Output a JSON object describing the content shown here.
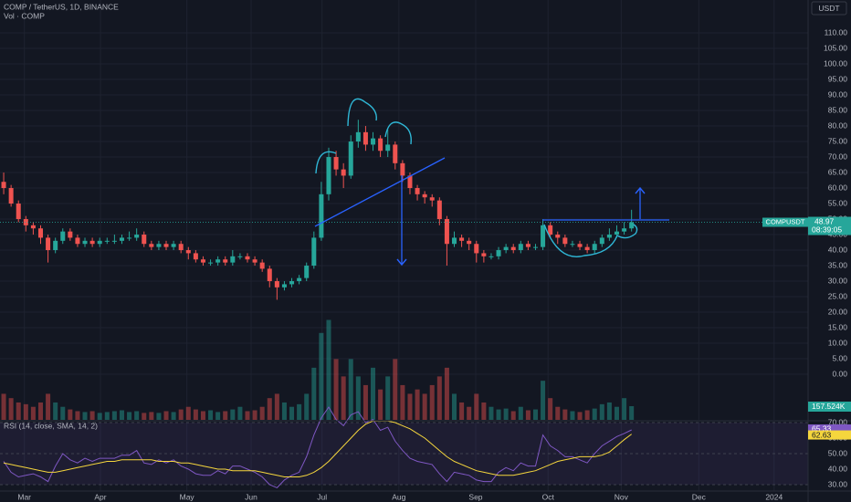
{
  "chart_data": {
    "type": "candlestick",
    "title": "COMP / TetherUS, 1D, BINANCE",
    "currency": "USDT",
    "symbol": "COMPUSDT",
    "countdown": "08:39:05",
    "colors": {
      "up": "#26a69a",
      "down": "#ef5350"
    },
    "grid": true,
    "xlim": [
      -0.5,
      108.9
    ],
    "xticks": [
      {
        "value": 2.8,
        "label": "Mar"
      },
      {
        "value": 13.1,
        "label": "Apr"
      },
      {
        "value": 24.8,
        "label": "May"
      },
      {
        "value": 33.5,
        "label": "Jun"
      },
      {
        "value": 43.1,
        "label": "Jul"
      },
      {
        "value": 53.5,
        "label": "Aug"
      },
      {
        "value": 63.9,
        "label": "Sep"
      },
      {
        "value": 73.7,
        "label": "Oct"
      },
      {
        "value": 83.6,
        "label": "Nov"
      },
      {
        "value": 94.1,
        "label": "Dec"
      },
      {
        "value": 104.3,
        "label": "2024"
      }
    ],
    "ylim": [
      -14.7,
      120.6
    ],
    "yticks": [
      {
        "value": 0,
        "label": "0.00"
      },
      {
        "value": 5,
        "label": "5.00"
      },
      {
        "value": 10,
        "label": "10.00"
      },
      {
        "value": 15,
        "label": "15.00"
      },
      {
        "value": 20,
        "label": "20.00"
      },
      {
        "value": 25,
        "label": "25.00"
      },
      {
        "value": 30,
        "label": "30.00"
      },
      {
        "value": 35,
        "label": "35.00"
      },
      {
        "value": 40,
        "label": "40.00"
      },
      {
        "value": 45,
        "label": "45.00"
      },
      {
        "value": 50,
        "label": "50.00"
      },
      {
        "value": 55,
        "label": "55.00"
      },
      {
        "value": 60,
        "label": "60.00"
      },
      {
        "value": 65,
        "label": "65.00"
      },
      {
        "value": 70,
        "label": "70.00"
      },
      {
        "value": 75,
        "label": "75.00"
      },
      {
        "value": 80,
        "label": "80.00"
      },
      {
        "value": 85,
        "label": "85.00"
      },
      {
        "value": 90,
        "label": "90.00"
      },
      {
        "value": 95,
        "label": "95.00"
      },
      {
        "value": 100,
        "label": "100.00"
      },
      {
        "value": 105,
        "label": "105.00"
      },
      {
        "value": 110,
        "label": "110.00"
      }
    ],
    "open": [
      62,
      60,
      55,
      50,
      48,
      47,
      44,
      40,
      43,
      46,
      44,
      42,
      43,
      42,
      43,
      43,
      43,
      44,
      44,
      45,
      42,
      41,
      42,
      41,
      42,
      40,
      39,
      37,
      36,
      36,
      37,
      36,
      38,
      38,
      37,
      36,
      34,
      30,
      28,
      29,
      30,
      31,
      35,
      44,
      58,
      70,
      66,
      64,
      75,
      78,
      74,
      76,
      72,
      74,
      68,
      64,
      60,
      58,
      57,
      56,
      50,
      42,
      44,
      43,
      42,
      39,
      38,
      38,
      40,
      41,
      40,
      42,
      41,
      41,
      48,
      45,
      44,
      42,
      42,
      41,
      40,
      42,
      44,
      45,
      46,
      47
    ],
    "high": [
      65,
      61,
      56,
      51,
      49,
      48,
      45,
      44,
      47,
      47,
      45,
      44,
      44,
      44,
      44,
      45,
      45,
      46,
      47,
      46,
      43,
      43,
      43,
      43,
      43,
      41,
      40,
      38,
      37,
      38,
      38,
      40,
      39,
      39,
      38,
      37,
      35,
      31,
      30,
      31,
      32,
      36,
      46,
      62,
      73,
      72,
      68,
      77,
      82,
      80,
      78,
      77,
      79,
      75,
      69,
      65,
      61,
      59,
      58,
      57,
      51,
      46,
      45,
      44,
      43,
      40,
      39,
      41,
      42,
      42,
      43,
      43,
      42,
      50,
      49,
      46,
      45,
      43,
      43,
      42,
      43,
      45,
      47,
      48,
      49,
      53
    ],
    "low": [
      58,
      54,
      49,
      46,
      45,
      42,
      36,
      39,
      42,
      43,
      41,
      41,
      41,
      41,
      42,
      42,
      42,
      43,
      43,
      41,
      40,
      40,
      40,
      40,
      39,
      37,
      36,
      35,
      35,
      35,
      35,
      35,
      37,
      36,
      35,
      33,
      28,
      24,
      27,
      28,
      29,
      30,
      34,
      43,
      56,
      64,
      60,
      63,
      73,
      72,
      72,
      70,
      70,
      66,
      62,
      58,
      56,
      55,
      54,
      48,
      35,
      41,
      41,
      40,
      36,
      36,
      37,
      37,
      39,
      39,
      39,
      40,
      40,
      40,
      44,
      42,
      41,
      41,
      40,
      39,
      39,
      41,
      43,
      44,
      45,
      46
    ],
    "close": [
      60,
      55,
      50,
      48,
      47,
      44,
      40,
      43,
      46,
      44,
      42,
      43,
      42,
      43,
      43,
      43,
      44,
      44,
      45,
      42,
      41,
      42,
      41,
      42,
      40,
      39,
      37,
      36,
      36,
      37,
      36,
      38,
      38,
      37,
      36,
      34,
      30,
      28,
      29,
      30,
      31,
      35,
      44,
      58,
      70,
      66,
      64,
      75,
      78,
      74,
      76,
      72,
      74,
      68,
      64,
      60,
      58,
      57,
      56,
      50,
      42,
      44,
      43,
      42,
      39,
      38,
      38,
      40,
      41,
      40,
      42,
      41,
      41,
      48,
      45,
      44,
      42,
      42,
      41,
      40,
      42,
      44,
      45,
      46,
      47,
      48.97
    ],
    "volume": {
      "name": "Vol · COMP",
      "last_label": "157.524K",
      "values": [
        300,
        250,
        200,
        180,
        150,
        200,
        300,
        200,
        150,
        120,
        100,
        90,
        100,
        80,
        90,
        100,
        110,
        90,
        100,
        80,
        90,
        80,
        100,
        90,
        120,
        150,
        120,
        100,
        110,
        90,
        100,
        120,
        150,
        100,
        110,
        150,
        250,
        300,
        200,
        150,
        180,
        300,
        600,
        1000,
        1150,
        700,
        500,
        700,
        500,
        400,
        600,
        350,
        500,
        700,
        400,
        300,
        350,
        300,
        400,
        500,
        600,
        300,
        200,
        150,
        300,
        200,
        150,
        120,
        130,
        100,
        150,
        110,
        120,
        450,
        250,
        150,
        120,
        100,
        90,
        110,
        130,
        180,
        200,
        150,
        250,
        157.524
      ]
    },
    "rsi": {
      "title": "RSI (14, close, SMA, 14, 2)",
      "ylim": [
        25.9,
        70.6
      ],
      "yticks": [
        {
          "value": 30,
          "label": "30.00"
        },
        {
          "value": 40,
          "label": "40.00"
        },
        {
          "value": 50,
          "label": "50.00"
        },
        {
          "value": 60,
          "label": "60.00"
        },
        {
          "value": 70,
          "label": "70.00"
        }
      ],
      "band_color": "#7e57c2",
      "series": [
        {
          "color": "#7e57c2",
          "values": [
            45,
            38,
            35,
            36,
            37,
            35,
            32,
            42,
            50,
            46,
            44,
            47,
            45,
            47,
            47,
            47,
            49,
            49,
            52,
            44,
            43,
            46,
            44,
            46,
            42,
            40,
            37,
            36,
            36,
            39,
            37,
            42,
            42,
            40,
            38,
            35,
            30,
            28,
            33,
            36,
            38,
            48,
            62,
            73,
            80,
            72,
            68,
            75,
            77,
            70,
            72,
            65,
            67,
            58,
            52,
            47,
            45,
            44,
            43,
            37,
            32,
            38,
            37,
            36,
            33,
            32,
            32,
            38,
            41,
            39,
            44,
            42,
            42,
            62,
            55,
            52,
            48,
            48,
            46,
            44,
            50,
            55,
            58,
            61,
            63,
            65.33
          ]
        },
        {
          "color": "#f5d63d",
          "values": [
            44,
            43,
            42,
            41,
            40,
            39,
            38,
            38,
            39,
            40,
            41,
            42,
            43,
            44,
            45,
            45,
            46,
            46,
            46,
            46,
            46,
            45,
            45,
            45,
            44,
            44,
            43,
            42,
            41,
            40,
            40,
            39,
            39,
            39,
            39,
            38,
            37,
            36,
            35,
            35,
            35,
            36,
            38,
            41,
            45,
            50,
            55,
            60,
            65,
            69,
            71,
            71,
            71,
            70,
            68,
            66,
            63,
            60,
            56,
            52,
            48,
            45,
            43,
            41,
            39,
            38,
            37,
            36,
            36,
            36,
            37,
            38,
            39,
            41,
            43,
            45,
            46,
            47,
            48,
            48,
            48,
            49,
            51,
            55,
            59,
            62.63
          ]
        }
      ]
    }
  }
}
